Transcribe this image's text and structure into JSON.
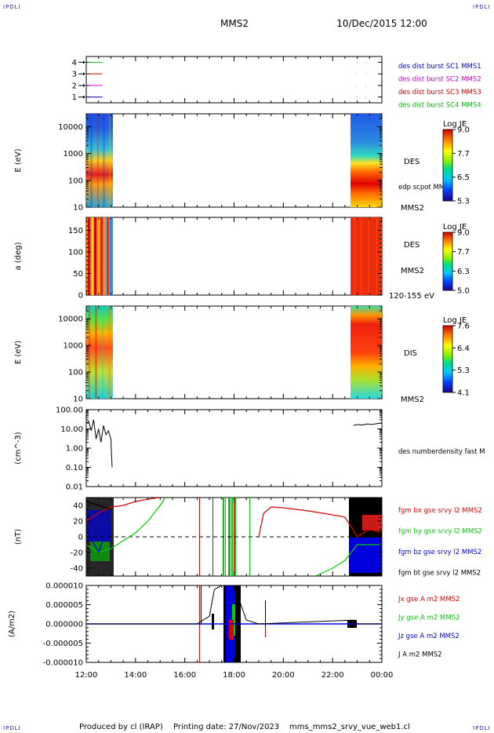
{
  "header": {
    "logo_left": "IPDLI",
    "logo_right": "IPDLI",
    "spacecraft": "MMS2",
    "date_time": "10/Dec/2015 12:00"
  },
  "footer": {
    "produced_by": "Produced by cl (IRAP)",
    "printing_date": "Printing date: 27/Nov/2023",
    "filename": "mms_mms2_srvy_vue_web1.cl",
    "logo_left": "IPDLI",
    "logo_right": "IPDLI"
  },
  "time_axis": {
    "start": "12:00",
    "end": "00:00",
    "ticks": [
      "12:00",
      "14:00",
      "16:00",
      "18:00",
      "20:00",
      "22:00",
      "00:00"
    ]
  },
  "chart_data": [
    {
      "id": "burst-availability",
      "type": "scatter",
      "y_ticks": [
        "1",
        "2",
        "3",
        "4"
      ],
      "ylim": [
        0.5,
        4.5
      ],
      "legend": [
        {
          "label": "des dist burst SC1 MMS1",
          "color": "#0000cc"
        },
        {
          "label": "des dist burst SC2 MMS2",
          "color": "#cc00cc"
        },
        {
          "label": "des dist burst SC3 MMS3",
          "color": "#cc0000"
        },
        {
          "label": "des dist burst SC4 MMS4",
          "color": "#00bb00"
        }
      ],
      "segments": [
        {
          "sc": 4,
          "x": [
            12.0,
            12.65
          ],
          "color": "#00bb00"
        },
        {
          "sc": 3,
          "x": [
            12.0,
            12.65
          ],
          "color": "#cc0000"
        },
        {
          "sc": 2,
          "x": [
            12.0,
            12.65
          ],
          "color": "#cc00cc"
        },
        {
          "sc": 1,
          "x": [
            12.0,
            12.65
          ],
          "color": "#0000cc"
        },
        {
          "sc": 4,
          "x": [
            22.95,
            23.0
          ],
          "color": "#00bb00"
        },
        {
          "sc": 4,
          "x": [
            23.3,
            23.35
          ],
          "color": "#00bb00"
        },
        {
          "sc": 3,
          "x": [
            22.95,
            23.0
          ],
          "color": "#cc0000"
        },
        {
          "sc": 3,
          "x": [
            23.3,
            23.35
          ],
          "color": "#cc0000"
        },
        {
          "sc": 2,
          "x": [
            22.95,
            23.0
          ],
          "color": "#cc00cc"
        },
        {
          "sc": 2,
          "x": [
            23.3,
            23.35
          ],
          "color": "#cc00cc"
        },
        {
          "sc": 1,
          "x": [
            22.95,
            23.0
          ],
          "color": "#0000cc"
        },
        {
          "sc": 1,
          "x": [
            23.3,
            23.35
          ],
          "color": "#0000cc"
        }
      ]
    },
    {
      "id": "des-energy",
      "type": "heatmap",
      "ylabel": "E (eV)",
      "y_scale": "log",
      "y_ticks": [
        "10",
        "100",
        "1000",
        "10000"
      ],
      "ylim": [
        10,
        30000
      ],
      "label": "DES",
      "label2": "edp scpot MMS2",
      "label3": "MMS2",
      "colorbar": {
        "title": "Log JE",
        "ticks": [
          "9.0",
          "7.7",
          "6.5",
          "5.3"
        ],
        "range": [
          5.3,
          9.0
        ]
      },
      "data_intervals": [
        [
          12.0,
          13.0
        ],
        [
          22.85,
          24.0
        ]
      ]
    },
    {
      "id": "des-pitch",
      "type": "heatmap",
      "ylabel": "a (deg)",
      "y_ticks": [
        "0",
        "50",
        "100",
        "150"
      ],
      "ylim": [
        0,
        180
      ],
      "label": "DES",
      "label2": "MMS2",
      "label3": "120-155 eV",
      "colorbar": {
        "title": "Log JE",
        "ticks": [
          "9.0",
          "7.7",
          "6.3",
          "5.0"
        ],
        "range": [
          5.0,
          9.0
        ]
      },
      "data_intervals": [
        [
          12.0,
          13.0
        ],
        [
          22.85,
          24.0
        ]
      ]
    },
    {
      "id": "dis-energy",
      "type": "heatmap",
      "ylabel": "E (eV)",
      "y_scale": "log",
      "y_ticks": [
        "10",
        "100",
        "1000",
        "10000"
      ],
      "ylim": [
        10,
        30000
      ],
      "label": "DIS",
      "label2": "MMS2",
      "colorbar": {
        "title": "Log JE",
        "ticks": [
          "7.6",
          "6.4",
          "5.3",
          "4.1"
        ],
        "range": [
          4.1,
          7.6
        ]
      },
      "data_intervals": [
        [
          12.0,
          13.0
        ],
        [
          22.85,
          24.0
        ]
      ]
    },
    {
      "id": "density",
      "type": "line",
      "ylabel": "(cm^-3)",
      "y_scale": "log",
      "y_ticks": [
        "0.01",
        "0.10",
        "1.00",
        "10.00",
        "100.00"
      ],
      "ylim": [
        0.01,
        100
      ],
      "legend": [
        {
          "label": "des numberdensity fast M",
          "color": "#000000"
        }
      ],
      "series": [
        {
          "name": "des numberdensity fast M",
          "color": "#000000",
          "x": [
            12.0,
            12.1,
            12.2,
            12.3,
            12.4,
            12.5,
            12.6,
            12.7,
            12.8,
            12.9,
            13.0,
            13.05,
            22.85,
            23.0,
            23.2,
            23.4,
            23.6,
            23.8,
            24.0
          ],
          "y": [
            20,
            25,
            8,
            30,
            3,
            10,
            2,
            15,
            5,
            8,
            3,
            0.1,
            15,
            17,
            16,
            18,
            17,
            19,
            20
          ]
        }
      ]
    },
    {
      "id": "magnetic-field",
      "type": "line",
      "ylabel": "(nT)",
      "y_ticks": [
        "-40",
        "-20",
        "0",
        "20",
        "40"
      ],
      "ylim": [
        -50,
        50
      ],
      "legend": [
        {
          "label": "fgm bx gse srvy l2 MMS2",
          "color": "#dd0000"
        },
        {
          "label": "fgm by gse srvy l2 MMS2",
          "color": "#00cc00"
        },
        {
          "label": "fgm bz gse srvy l2 MMS2",
          "color": "#0000dd"
        },
        {
          "label": "fgm bt gse srvy l2 MMS2",
          "color": "#000000"
        }
      ],
      "series": [
        {
          "name": "fgm bx gse srvy l2 MMS2",
          "color": "#dd0000",
          "x": [
            12.0,
            12.5,
            13.0,
            13.5,
            14.0,
            14.5,
            15.0,
            19.0,
            19.2,
            19.5,
            20.0,
            21.0,
            22.0,
            22.5,
            23.0,
            23.5,
            24.0
          ],
          "y": [
            20,
            30,
            38,
            40,
            45,
            48,
            50,
            0,
            30,
            38,
            37,
            33,
            28,
            25,
            0,
            10,
            5
          ]
        },
        {
          "name": "fgm by gse srvy l2 MMS2",
          "color": "#00cc00",
          "x": [
            12.0,
            12.5,
            13.0,
            13.5,
            14.0,
            14.5,
            15.0,
            15.2,
            21.3,
            22.0,
            22.5,
            23.0,
            24.0
          ],
          "y": [
            -10,
            -20,
            -15,
            -5,
            5,
            20,
            40,
            50,
            -50,
            -40,
            -30,
            -10,
            -10
          ]
        },
        {
          "name": "fgm bz gse srvy l2 MMS2",
          "color": "#0000dd",
          "x": [
            12.0,
            12.5,
            12.9,
            13.0,
            22.9,
            23.3,
            23.7,
            24.0
          ],
          "y": [
            10,
            -20,
            15,
            0,
            -20,
            -30,
            -40,
            -25
          ]
        },
        {
          "name": "fgm bt gse srvy l2 MMS2",
          "color": "#000000",
          "x": [
            12.0,
            12.5,
            13.0,
            22.9,
            23.5,
            24.0
          ],
          "y": [
            45,
            40,
            35,
            40,
            50,
            45
          ]
        }
      ],
      "reference_line": 0
    },
    {
      "id": "current-density",
      "type": "line",
      "ylabel": "(A/m2)",
      "y_ticks": [
        "-0.000010",
        "-0.000005",
        "0.000000",
        "0.000005",
        "0.000010"
      ],
      "ylim": [
        -1e-05,
        1e-05
      ],
      "legend": [
        {
          "label": "Jx gse A m2 MMS2",
          "color": "#dd0000"
        },
        {
          "label": "Jy gse A m2 MMS2",
          "color": "#00cc00"
        },
        {
          "label": "Jz gse A m2 MMS2",
          "color": "#0000dd"
        },
        {
          "label": "J A m2 MMS2",
          "color": "#000000"
        }
      ],
      "series": [
        {
          "name": "J A m2 MMS2",
          "color": "#000000",
          "x": [
            12.0,
            13.0,
            16.5,
            17.0,
            17.2,
            17.5,
            18.0,
            18.5,
            19.0,
            22.85,
            23.0,
            24.0
          ],
          "y": [
            0,
            0,
            0,
            2e-06,
            9e-06,
            1e-05,
            1e-05,
            1e-06,
            0,
            1e-06,
            0,
            0
          ]
        }
      ]
    }
  ]
}
